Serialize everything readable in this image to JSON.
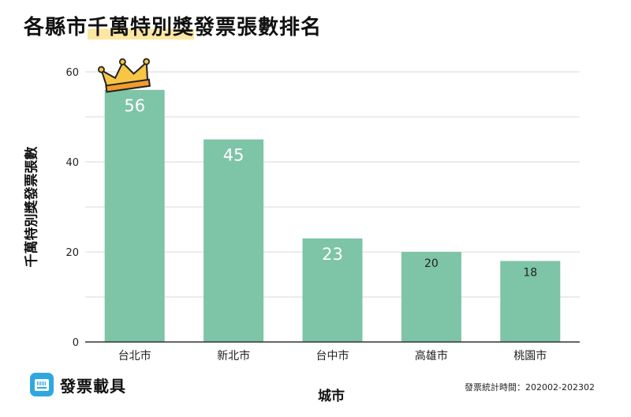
{
  "title_part1": "各縣市",
  "title_highlight": "千萬特別獎",
  "title_part2": "發票張數排名",
  "brand": {
    "name": "發票載具",
    "icon": "barcode-card-icon"
  },
  "note": "發票統計時間：202002-202302",
  "crown_icon": "crown-icon",
  "colors": {
    "bar": "#7ec4a7",
    "grid": "#d9d9d9",
    "axis": "#333333",
    "highlight": "#fbe7a1",
    "brand": "#2fa7e0"
  },
  "chart_data": {
    "type": "bar",
    "title": "各縣市千萬特別獎發票張數排名",
    "xlabel": "城市",
    "ylabel": "千萬特別獎發票張數",
    "categories": [
      "台北市",
      "新北市",
      "台中市",
      "高雄市",
      "桃園市"
    ],
    "values": [
      56,
      45,
      23,
      20,
      18
    ],
    "data_labels": [
      "56",
      "45",
      "23",
      "20",
      "18"
    ],
    "yticks": [
      "0",
      "20",
      "40",
      "60"
    ],
    "ylim": [
      0,
      60
    ],
    "grid": true,
    "legend": "none"
  }
}
